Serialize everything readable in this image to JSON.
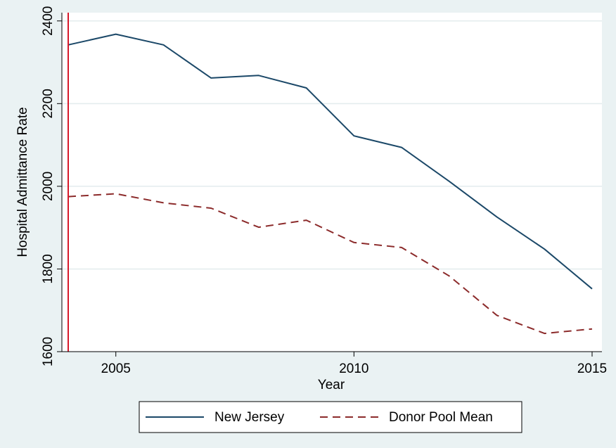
{
  "chart_data": {
    "type": "line",
    "xlabel": "Year",
    "ylabel": "Hospital Admittance Rate",
    "xlim": [
      2004,
      2015
    ],
    "ylim": [
      1600,
      2420
    ],
    "x_ticks": [
      2005,
      2010,
      2015
    ],
    "y_ticks": [
      1600,
      1800,
      2000,
      2200,
      2400
    ],
    "grid": true,
    "legend_position": "bottom",
    "reference_line": {
      "x": 2004,
      "color": "#d7192b"
    },
    "x": [
      2004,
      2005,
      2006,
      2007,
      2008,
      2009,
      2010,
      2011,
      2012,
      2013,
      2014,
      2015
    ],
    "series": [
      {
        "name": "New Jersey",
        "style": "solid",
        "color": "#1b4868",
        "values": [
          2342,
          2368,
          2342,
          2262,
          2268,
          2238,
          2122,
          2094,
          2012,
          1926,
          1848,
          1752
        ]
      },
      {
        "name": "Donor Pool Mean",
        "style": "dashed",
        "color": "#8c2b2b",
        "values": [
          1975,
          1982,
          1960,
          1947,
          1901,
          1918,
          1864,
          1852,
          1783,
          1688,
          1644,
          1655
        ]
      }
    ]
  }
}
